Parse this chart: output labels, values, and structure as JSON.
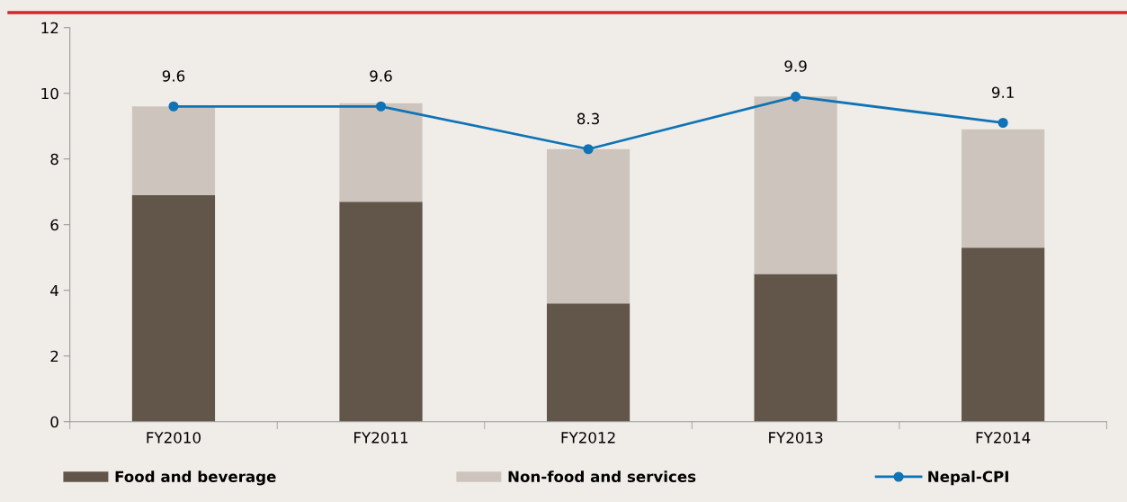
{
  "chart_data": {
    "type": "bar",
    "stacked": true,
    "categories": [
      "FY2010",
      "FY2011",
      "FY2012",
      "FY2013",
      "FY2014"
    ],
    "series": [
      {
        "name": "Food and beverage",
        "color": "#625549",
        "values": [
          6.9,
          6.7,
          3.6,
          4.5,
          5.3
        ]
      },
      {
        "name": "Non-food and services",
        "color": "#cdc5bd",
        "values": [
          2.7,
          3.0,
          4.7,
          5.4,
          3.6
        ]
      },
      {
        "name": "Nepal-CPI",
        "type": "line",
        "color": "#0f73b6",
        "values": [
          9.6,
          9.6,
          8.3,
          9.9,
          9.1
        ],
        "data_labels": true
      }
    ],
    "ylim": [
      0,
      12
    ],
    "yticks": [
      0,
      2,
      4,
      6,
      8,
      10,
      12
    ],
    "grid": false,
    "legend": "bottom",
    "marker": "circle"
  }
}
